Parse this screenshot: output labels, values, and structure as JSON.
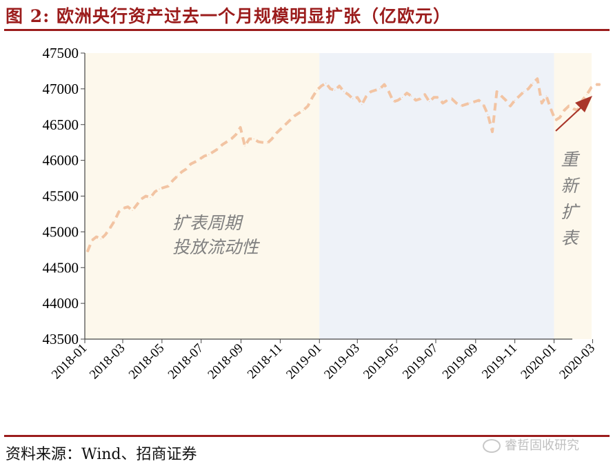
{
  "header": {
    "title": "图 2:  欧洲央行资产过去一个月规模明显扩张（亿欧元）"
  },
  "footer": {
    "source": "资料来源：Wind、招商证券",
    "watermark": "睿哲固收研究"
  },
  "chart_data": {
    "type": "line",
    "title": "欧洲央行资产过去一个月规模明显扩张（亿欧元）",
    "xlabel": "",
    "ylabel": "",
    "ylim": [
      43500,
      47500
    ],
    "y_ticks": [
      43500,
      44000,
      44500,
      45000,
      45500,
      46000,
      46500,
      47000,
      47500
    ],
    "x_ticks": [
      "2018-01",
      "2018-03",
      "2018-05",
      "2018-07",
      "2018-09",
      "2018-11",
      "2019-01",
      "2019-03",
      "2019-05",
      "2019-07",
      "2019-09",
      "2019-11",
      "2020-01",
      "2020-03"
    ],
    "grid": false,
    "legend": "none",
    "line_style": "dashed",
    "colors": {
      "line": "#f2c4a3",
      "expansion_bg": "#fdf8ec",
      "plateau_bg": "#eef2f8",
      "arrow": "#a9362a",
      "text": "#808080"
    },
    "regions": [
      {
        "start": "2018-01",
        "end": "2019-01",
        "style": "expansion"
      },
      {
        "start": "2019-01",
        "end": "2020-01",
        "style": "plateau"
      },
      {
        "start": "2020-01",
        "end": "2020-03",
        "style": "expansion"
      }
    ],
    "annotations": [
      {
        "text_lines": [
          "扩表周期",
          "投放流动性"
        ],
        "orientation": "horizontal"
      },
      {
        "text_lines": [
          "重",
          "新",
          "扩",
          "表"
        ],
        "orientation": "vertical"
      }
    ],
    "series": [
      {
        "x": [
          "2018-01-05",
          "2018-01-12",
          "2018-01-19",
          "2018-01-26",
          "2018-02-02",
          "2018-02-09",
          "2018-02-16",
          "2018-02-23",
          "2018-03-02",
          "2018-03-09",
          "2018-03-16",
          "2018-03-23",
          "2018-03-30",
          "2018-04-06",
          "2018-04-13",
          "2018-04-20",
          "2018-04-27",
          "2018-05-04",
          "2018-05-11",
          "2018-05-18",
          "2018-05-25",
          "2018-06-01",
          "2018-06-08",
          "2018-06-15",
          "2018-06-22",
          "2018-06-29",
          "2018-07-06",
          "2018-07-13",
          "2018-07-20",
          "2018-07-27",
          "2018-08-03",
          "2018-08-10",
          "2018-08-17",
          "2018-08-24",
          "2018-08-31",
          "2018-09-07",
          "2018-09-14",
          "2018-09-21",
          "2018-09-28",
          "2018-10-05",
          "2018-10-12",
          "2018-10-19",
          "2018-10-26",
          "2018-11-02",
          "2018-11-09",
          "2018-11-16",
          "2018-11-23",
          "2018-11-30",
          "2018-12-07",
          "2018-12-14",
          "2018-12-21",
          "2018-12-28",
          "2019-01-04",
          "2019-01-11",
          "2019-01-18",
          "2019-01-25",
          "2019-02-01",
          "2019-02-08",
          "2019-02-15",
          "2019-02-22",
          "2019-03-01",
          "2019-03-08",
          "2019-03-15",
          "2019-03-22",
          "2019-03-29",
          "2019-04-05",
          "2019-04-12",
          "2019-04-19",
          "2019-04-26",
          "2019-05-03",
          "2019-05-10",
          "2019-05-17",
          "2019-05-24",
          "2019-05-31",
          "2019-06-07",
          "2019-06-14",
          "2019-06-21",
          "2019-06-28",
          "2019-07-05",
          "2019-07-12",
          "2019-07-19",
          "2019-07-26",
          "2019-08-02",
          "2019-08-09",
          "2019-08-16",
          "2019-08-23",
          "2019-08-30",
          "2019-09-06",
          "2019-09-13",
          "2019-09-20",
          "2019-09-27",
          "2019-10-04",
          "2019-10-11",
          "2019-10-18",
          "2019-10-25",
          "2019-11-01",
          "2019-11-08",
          "2019-11-15",
          "2019-11-22",
          "2019-11-29",
          "2019-12-06",
          "2019-12-13",
          "2019-12-20",
          "2019-12-27",
          "2020-01-03",
          "2020-01-10",
          "2020-01-17",
          "2020-01-24",
          "2020-01-31",
          "2020-02-07",
          "2020-02-14",
          "2020-02-21",
          "2020-02-28",
          "2020-03-06",
          "2020-03-13"
        ],
        "values": [
          44720,
          44880,
          44930,
          44900,
          44960,
          45050,
          45150,
          45280,
          45330,
          45350,
          45300,
          45380,
          45460,
          45500,
          45480,
          45560,
          45600,
          45620,
          45640,
          45720,
          45780,
          45840,
          45880,
          45950,
          45980,
          46020,
          46060,
          46080,
          46120,
          46160,
          46220,
          46260,
          46300,
          46360,
          46460,
          46200,
          46300,
          46300,
          46260,
          46250,
          46240,
          46300,
          46380,
          46440,
          46500,
          46560,
          46620,
          46660,
          46700,
          46760,
          46880,
          46980,
          47040,
          47080,
          47000,
          46980,
          47040,
          46960,
          46920,
          46860,
          46880,
          46780,
          46900,
          46960,
          46980,
          47000,
          47060,
          46960,
          46820,
          46840,
          46880,
          46940,
          46900,
          46840,
          46860,
          46920,
          46820,
          46880,
          46880,
          46800,
          46840,
          46860,
          46800,
          46760,
          46780,
          46800,
          46820,
          46840,
          46780,
          46640,
          46400,
          46960,
          46900,
          46840,
          46760,
          46840,
          46900,
          46960,
          47000,
          47080,
          47140,
          46800,
          46900,
          46720,
          46560,
          46600,
          46700,
          46760,
          46720,
          46700,
          46840,
          46920,
          47020,
          47060,
          47060
        ]
      }
    ]
  }
}
